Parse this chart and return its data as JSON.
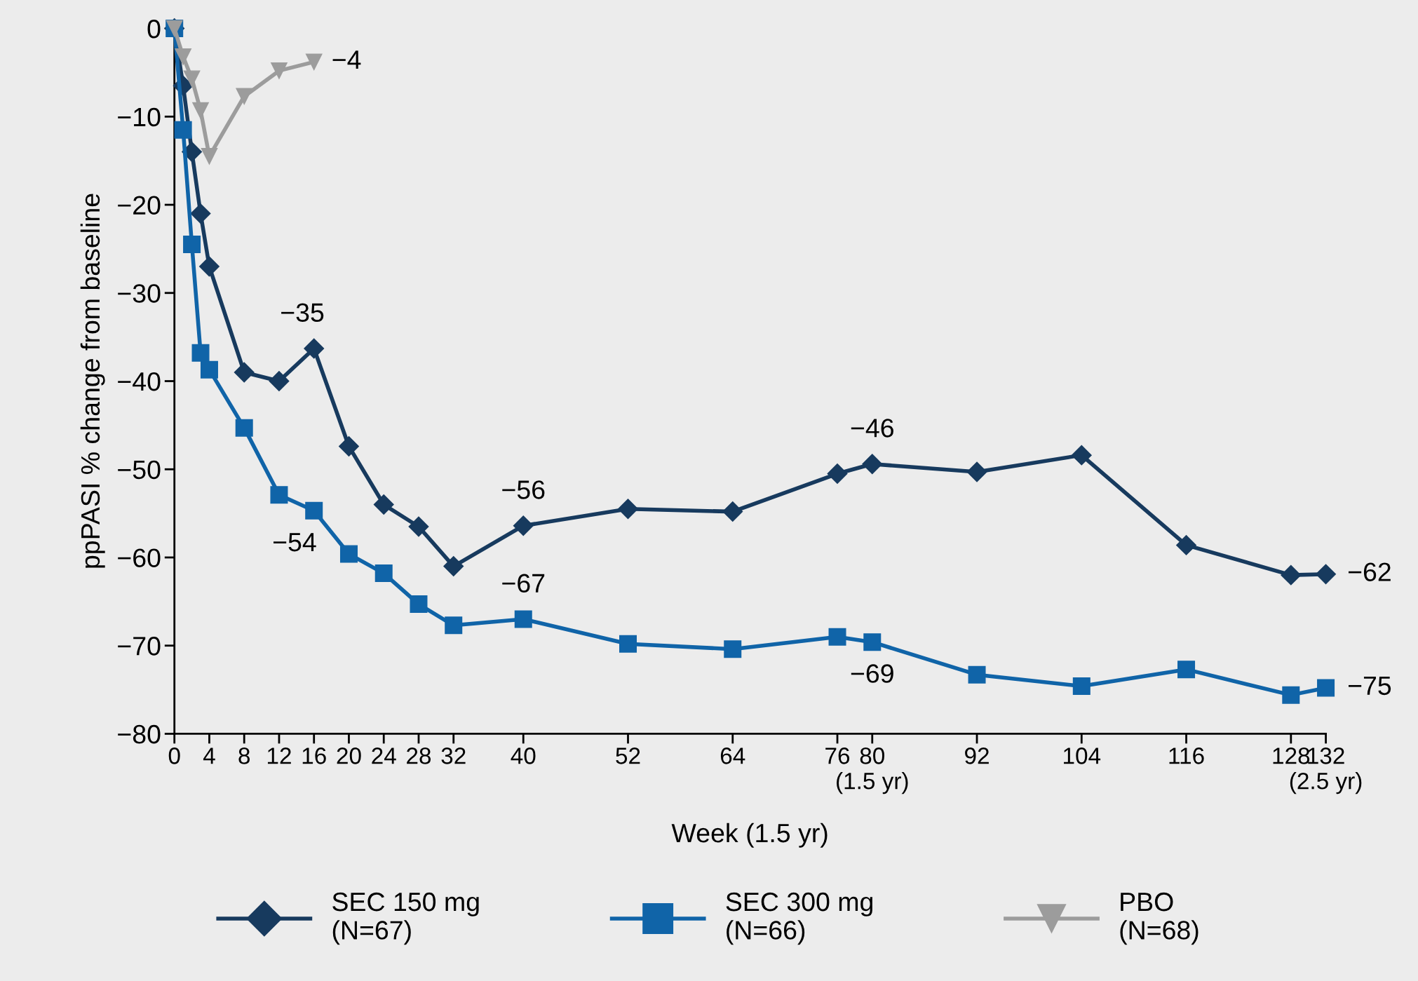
{
  "chart_data": {
    "type": "line",
    "xlabel": "Week (1.5 yr)",
    "ylabel": "ppPASI % change from baseline",
    "xlim": [
      0,
      132
    ],
    "ylim": [
      -80,
      0
    ],
    "xticks": [
      0,
      4,
      8,
      12,
      16,
      20,
      24,
      28,
      32,
      40,
      52,
      64,
      76,
      {
        "value": 80,
        "label": "80\n(1.5 yr)"
      },
      92,
      104,
      116,
      128,
      {
        "value": 132,
        "label": "132\n(2.5 yr)"
      }
    ],
    "yticks": [
      {
        "value": 0,
        "label": "0"
      },
      {
        "value": -10,
        "label": "−10"
      },
      {
        "value": -20,
        "label": "−20"
      },
      {
        "value": -30,
        "label": "−30"
      },
      {
        "value": -40,
        "label": "−40"
      },
      {
        "value": -50,
        "label": "−50"
      },
      {
        "value": -60,
        "label": "−60"
      },
      {
        "value": -70,
        "label": "−70"
      },
      {
        "value": -80,
        "label": "−80"
      }
    ],
    "grid": false,
    "legend": "bottom",
    "line_style": "solid",
    "series": [
      {
        "name": "SEC 150 mg\n(N=67)",
        "color": "#173a5e",
        "marker": "diamond",
        "x": [
          0,
          1,
          2,
          3,
          4,
          8,
          12,
          16,
          20,
          24,
          28,
          32,
          40,
          52,
          64,
          76,
          80,
          92,
          104,
          116,
          128,
          132
        ],
        "values": [
          0,
          -6.5,
          -14,
          -21,
          -27,
          -39,
          -40,
          -36.3,
          -47.4,
          -54,
          -56.5,
          -61,
          -56.4,
          -54.5,
          -54.8,
          -50.5,
          -49.4,
          -50.3,
          -48.4,
          -58.6,
          -62,
          -61.9
        ]
      },
      {
        "name": "SEC 300 mg\n(N=66)",
        "color": "#1064a8",
        "marker": "square",
        "x": [
          0,
          1,
          2,
          3,
          4,
          8,
          12,
          16,
          20,
          24,
          28,
          32,
          40,
          52,
          64,
          76,
          80,
          92,
          104,
          116,
          128,
          132
        ],
        "values": [
          0,
          -11.5,
          -24.5,
          -36.8,
          -38.7,
          -45.3,
          -52.9,
          -54.7,
          -59.6,
          -61.8,
          -65.3,
          -67.7,
          -67,
          -69.8,
          -70.4,
          -69,
          -69.6,
          -73.3,
          -74.6,
          -72.7,
          -75.6,
          -74.8
        ]
      },
      {
        "name": "PBO\n(N=68)",
        "color": "#9c9c9c",
        "marker": "triangle",
        "x": [
          0,
          1,
          2,
          3,
          4,
          8,
          12,
          16
        ],
        "values": [
          0,
          -3.2,
          -5.7,
          -9.3,
          -14.5,
          -7.7,
          -4.8,
          -3.8
        ]
      }
    ],
    "annotations": [
      {
        "text": "−4",
        "x": 16,
        "y": -3.8
      },
      {
        "text": "−35",
        "x": 16,
        "y": -36.3
      },
      {
        "text": "−54",
        "x": 16,
        "y": -54.7
      },
      {
        "text": "−56",
        "x": 40,
        "y": -56.4
      },
      {
        "text": "−67",
        "x": 40,
        "y": -67
      },
      {
        "text": "−46",
        "x": 80,
        "y": -49.4
      },
      {
        "text": "−69",
        "x": 80,
        "y": -69.6
      },
      {
        "text": "−62",
        "x": 132,
        "y": -61.9
      },
      {
        "text": "−75",
        "x": 132,
        "y": -74.8
      }
    ]
  }
}
